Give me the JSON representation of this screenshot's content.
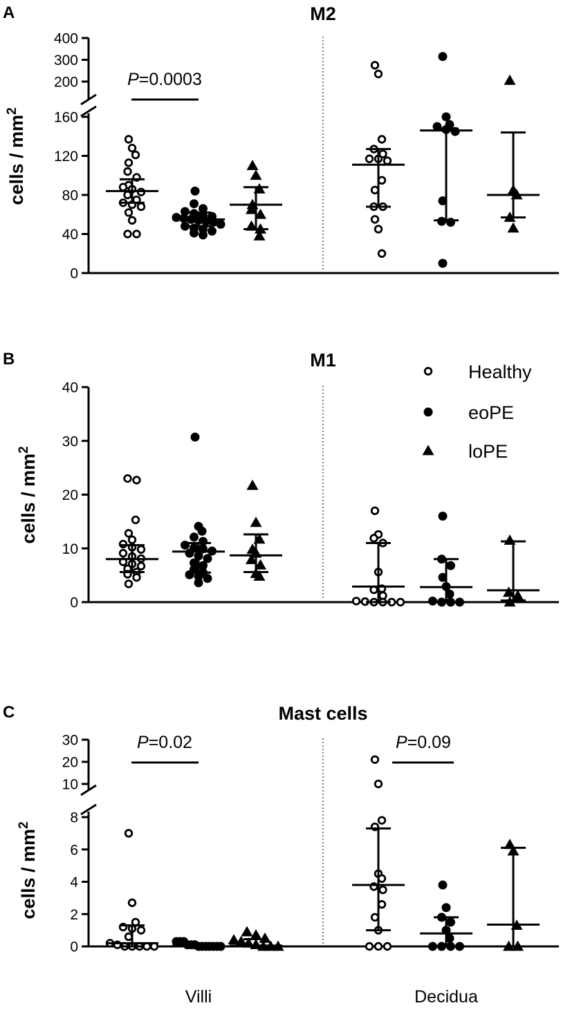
{
  "chart_data": [
    {
      "type": "scatter",
      "panel": "A",
      "title": "M2",
      "ylabel": "cells / mm",
      "ylabel_sup": "2",
      "y_break": true,
      "ylim_lower": [
        0,
        160
      ],
      "yticks_lower": [
        0,
        40,
        80,
        120,
        160
      ],
      "ylim_upper": [
        200,
        400
      ],
      "yticks_upper": [
        200,
        300,
        400
      ],
      "groups": [
        {
          "region": "Villi",
          "series": "Healthy",
          "values": [
            137,
            128,
            121,
            113,
            104,
            98,
            90,
            88,
            86,
            83,
            80,
            75,
            72,
            70,
            68,
            62,
            54,
            40,
            40
          ],
          "median": 84,
          "q1": 72,
          "q3": 96
        },
        {
          "region": "Villi",
          "series": "eoPE",
          "values": [
            84,
            71,
            66,
            63,
            61,
            59,
            58,
            57,
            56,
            55,
            54,
            53,
            52,
            50,
            48,
            46,
            45,
            43,
            41,
            39
          ],
          "median": 55,
          "q1": 48,
          "q3": 62
        },
        {
          "region": "Villi",
          "series": "loPE",
          "values": [
            110,
            100,
            86,
            70,
            65,
            60,
            48,
            45,
            38
          ],
          "median": 70,
          "q1": 45,
          "q3": 88
        },
        {
          "region": "Decidua",
          "series": "Healthy",
          "values": [
            275,
            235,
            137,
            127,
            122,
            117,
            117,
            115,
            95,
            85,
            68,
            68,
            55,
            45,
            20
          ],
          "median": 111,
          "q1": 68,
          "q3": 127
        },
        {
          "region": "Decidua",
          "series": "eoPE",
          "values": [
            315,
            160,
            152,
            150,
            147,
            145,
            74,
            53,
            52,
            10
          ],
          "median": 146,
          "q1": 54,
          "q3": 148
        },
        {
          "region": "Decidua",
          "series": "loPE",
          "values": [
            205,
            85,
            80,
            57,
            46
          ],
          "median": 80,
          "q1": 57,
          "q3": 144
        }
      ],
      "annotations": [
        {
          "text_italic": "P",
          "text": "=0.0003",
          "region": "Villi",
          "from_series": "Healthy",
          "to_series": "eoPE"
        }
      ]
    },
    {
      "type": "scatter",
      "panel": "B",
      "title": "M1",
      "ylabel": "cells / mm",
      "ylabel_sup": "2",
      "y_break": false,
      "ylim": [
        0,
        40
      ],
      "yticks": [
        0,
        10,
        20,
        30,
        40
      ],
      "legend": {
        "placement": "top-right",
        "entries": [
          {
            "label": "Healthy",
            "marker": "open-circle"
          },
          {
            "label": "eoPE",
            "marker": "filled-circle"
          },
          {
            "label": "loPE",
            "marker": "filled-triangle"
          }
        ]
      },
      "groups": [
        {
          "region": "Villi",
          "series": "Healthy",
          "values": [
            23,
            22.7,
            15.3,
            12.8,
            11.6,
            10.8,
            10.2,
            9.8,
            9.1,
            8.5,
            8.1,
            7.5,
            7.1,
            6.7,
            6.2,
            5.6,
            5.2,
            4.6,
            3.4
          ],
          "median": 8,
          "q1": 5.6,
          "q3": 10.6
        },
        {
          "region": "Villi",
          "series": "eoPE",
          "values": [
            30.7,
            14.1,
            13.2,
            12.1,
            11.3,
            10.6,
            10.1,
            9.9,
            9.5,
            9.1,
            8.6,
            8.1,
            7.3,
            6.8,
            6.1,
            5.5,
            5.1,
            4.8,
            4.4,
            3.6
          ],
          "median": 9.4,
          "q1": 5.5,
          "q3": 11
        },
        {
          "region": "Villi",
          "series": "loPE",
          "values": [
            21.7,
            14.8,
            11.7,
            9.8,
            9.1,
            7.9,
            6.9,
            5.3,
            4.8
          ],
          "median": 8.7,
          "q1": 5.6,
          "q3": 12.6
        },
        {
          "region": "Decidua",
          "series": "Healthy",
          "values": [
            17,
            12.6,
            11.9,
            11,
            5.6,
            2.5,
            2.3,
            1.2,
            0.2,
            0.1,
            0,
            0,
            0,
            0
          ],
          "median": 2.9,
          "q1": 0,
          "q3": 11
        },
        {
          "region": "Decidua",
          "series": "eoPE",
          "values": [
            16,
            8,
            6.8,
            4.6,
            2.9,
            1.5,
            0.2,
            0,
            0,
            0
          ],
          "median": 2.8,
          "q1": 0,
          "q3": 8
        },
        {
          "region": "Decidua",
          "series": "loPE",
          "values": [
            11.5,
            1.8,
            1.2,
            0
          ],
          "median": 2.2,
          "q1": 0.3,
          "q3": 11.3
        }
      ]
    },
    {
      "type": "scatter",
      "panel": "C",
      "title": "Mast cells",
      "ylabel": "cells / mm",
      "ylabel_sup": "2",
      "y_break": true,
      "ylim_lower": [
        0,
        8
      ],
      "yticks_lower": [
        0,
        2,
        4,
        6,
        8
      ],
      "ylim_upper": [
        10,
        30
      ],
      "yticks_upper": [
        10,
        20,
        30
      ],
      "xlabels": [
        "Villi",
        "Decidua"
      ],
      "groups": [
        {
          "region": "Villi",
          "series": "Healthy",
          "values": [
            7,
            2.7,
            1.5,
            1.2,
            1.1,
            1,
            0.6,
            0.2,
            0.1,
            0,
            0,
            0,
            0,
            0
          ],
          "median": 0.2,
          "q1": 0,
          "q3": 1.3
        },
        {
          "region": "Villi",
          "series": "eoPE",
          "values": [
            0.3,
            0.3,
            0.3,
            0.1,
            0.1,
            0.1,
            0,
            0,
            0,
            0,
            0,
            0,
            0
          ],
          "median": 0.05,
          "q1": 0,
          "q3": 0.2
        },
        {
          "region": "Villi",
          "series": "loPE",
          "values": [
            0.9,
            0.7,
            0.5,
            0.4,
            0.3,
            0.2,
            0.1,
            0,
            0,
            0
          ],
          "median": 0.05,
          "q1": 0,
          "q3": 0.45
        },
        {
          "region": "Decidua",
          "series": "Healthy",
          "values": [
            21,
            10,
            7.8,
            7.4,
            4.5,
            4.2,
            3.7,
            3.5,
            2.6,
            1.8,
            1,
            0,
            0,
            0
          ],
          "median": 3.8,
          "q1": 1,
          "q3": 7.3
        },
        {
          "region": "Decidua",
          "series": "eoPE",
          "values": [
            3.8,
            2.4,
            1.8,
            1.5,
            1,
            0.5,
            0,
            0,
            0,
            0
          ],
          "median": 0.8,
          "q1": 0,
          "q3": 1.8
        },
        {
          "region": "Decidua",
          "series": "loPE",
          "values": [
            6.3,
            5.9,
            1.3,
            0,
            0
          ],
          "median": 1.35,
          "q1": 0,
          "q3": 6.1
        }
      ],
      "annotations": [
        {
          "text_italic": "P",
          "text": "=0.02",
          "region": "Villi",
          "from_series": "Healthy",
          "to_series": "eoPE"
        },
        {
          "text_italic": "P",
          "text": "=0.09",
          "region": "Decidua",
          "from_series": "Healthy",
          "to_series": "eoPE"
        }
      ]
    }
  ]
}
